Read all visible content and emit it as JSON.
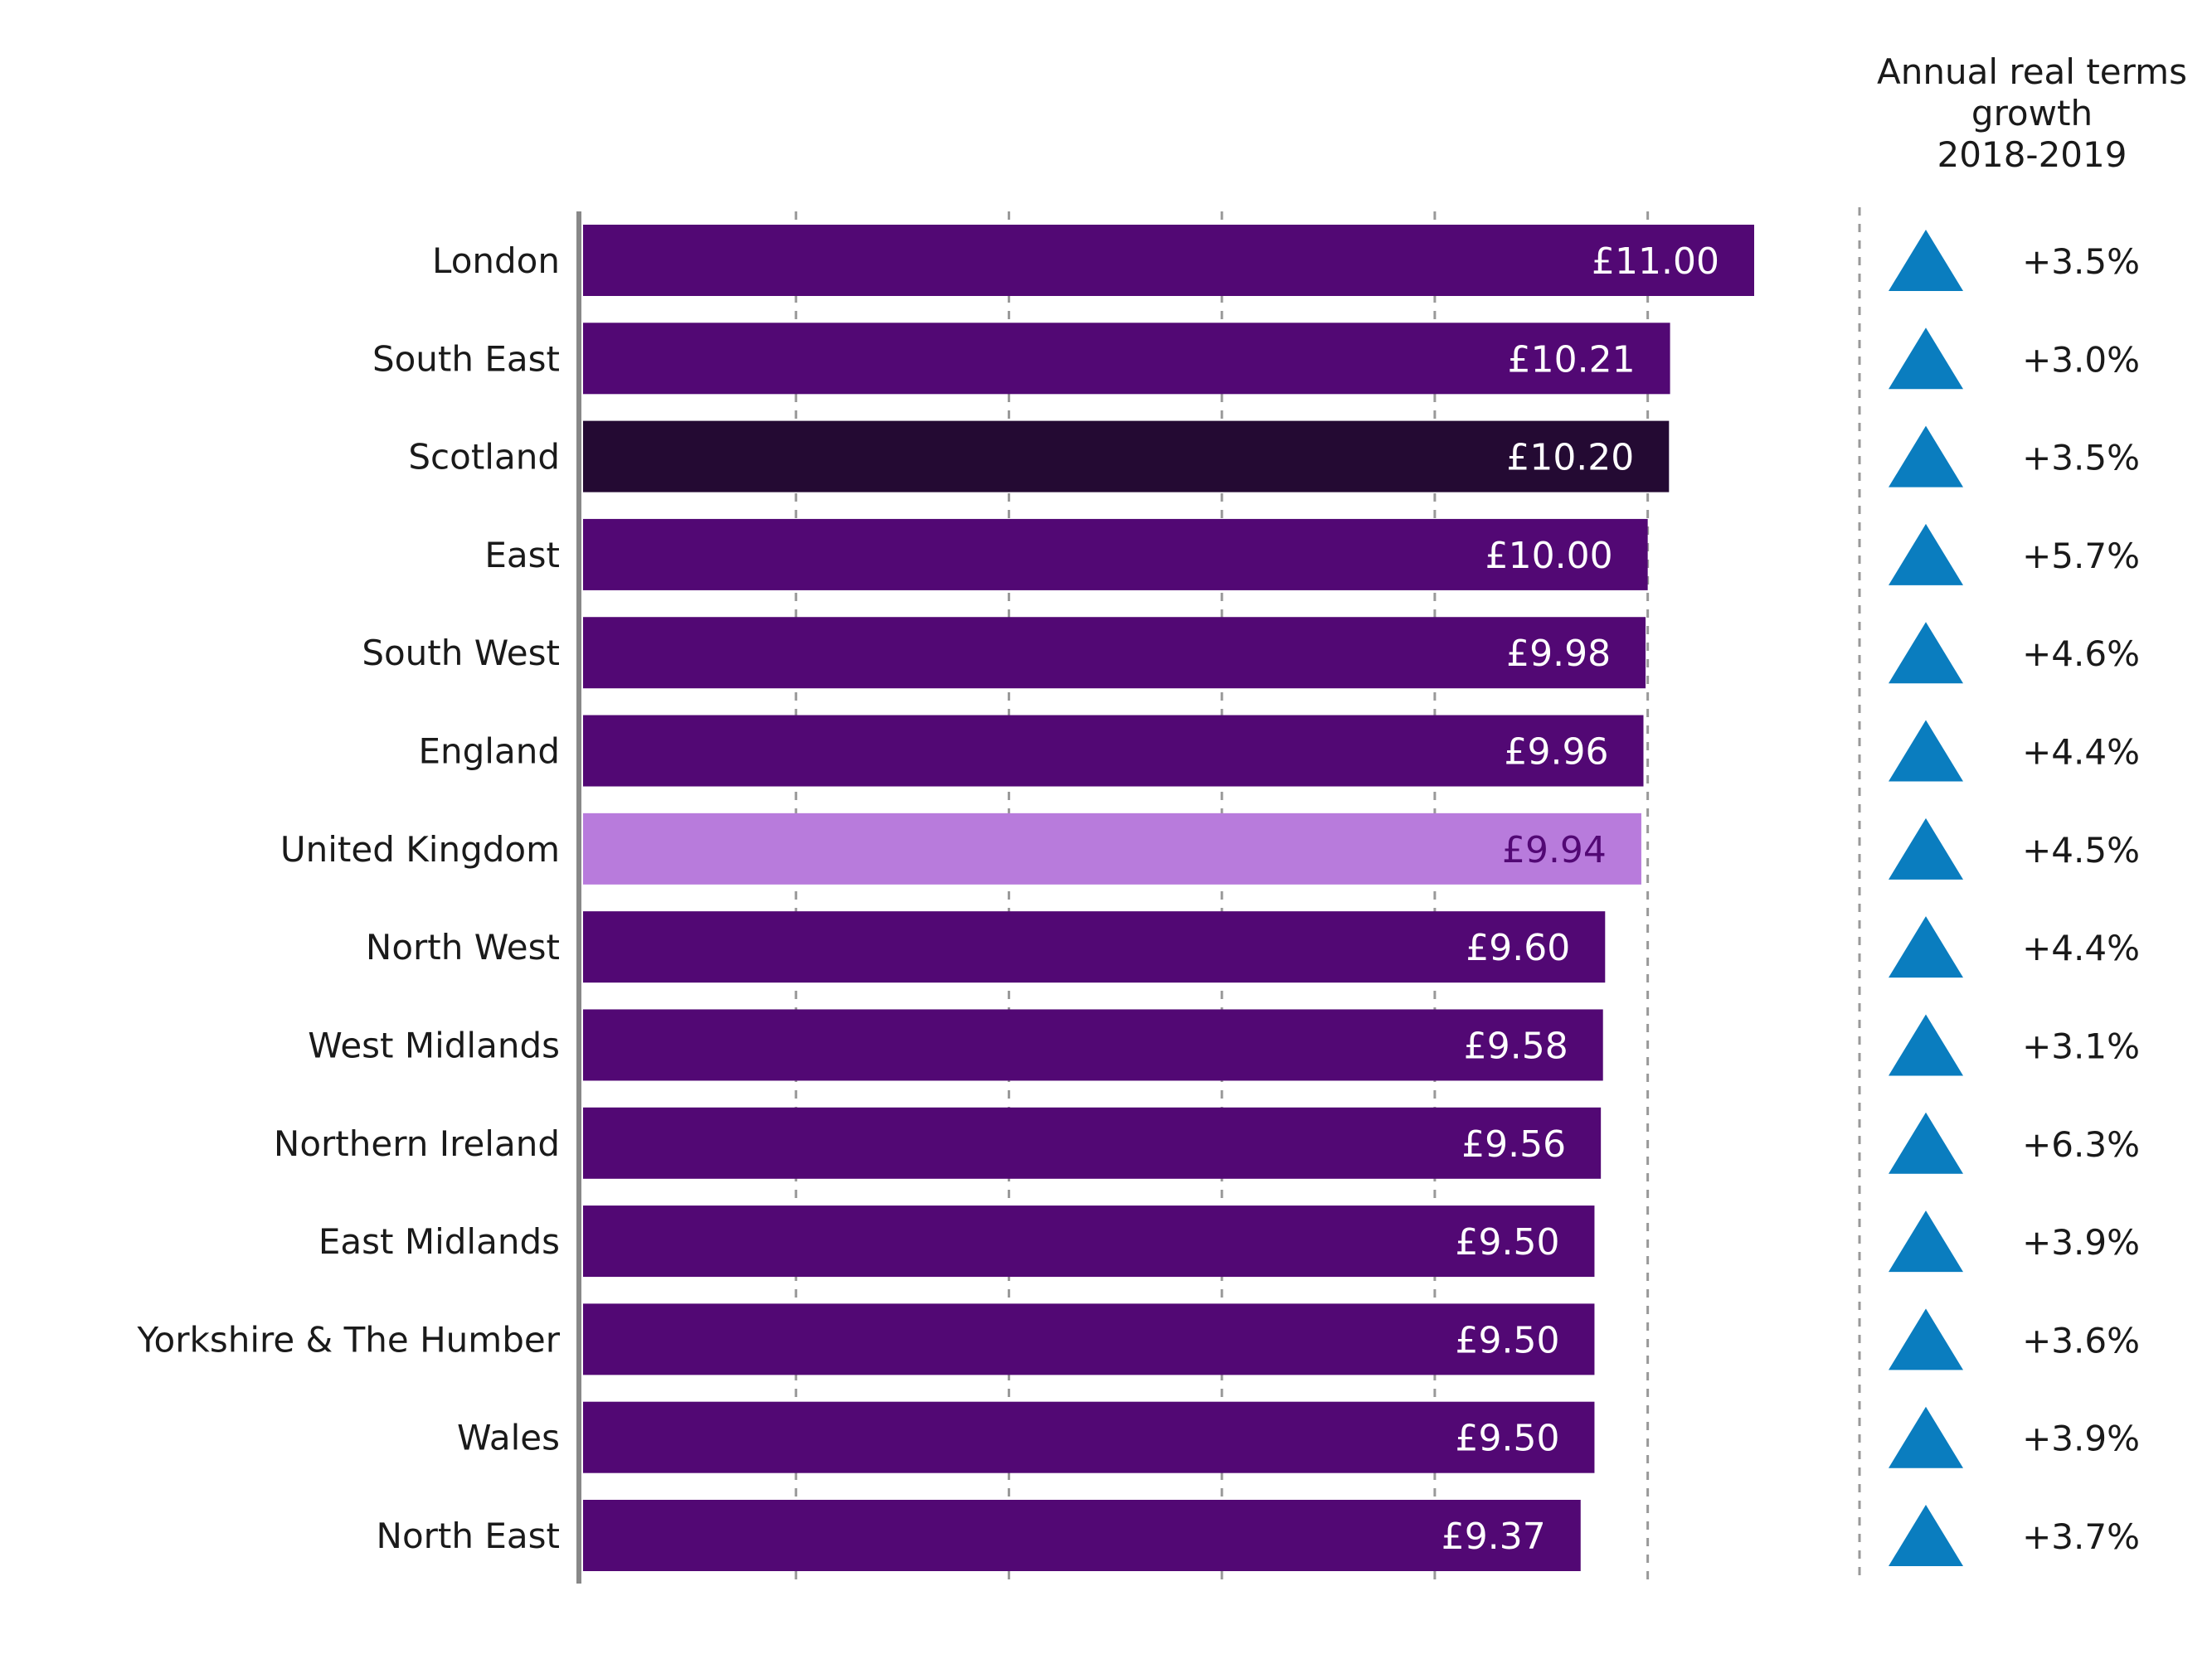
{
  "colors": {
    "default_bar": "#520874",
    "scotland_bar": "#240a33",
    "uk_bar": "#b87bdc",
    "uk_label": "#520874",
    "value_text": "#ffffff",
    "axis": "#888888",
    "gridline": "#999999",
    "triangle": "#0a7dbf"
  },
  "growth_header": {
    "line1": "Annual real terms",
    "line2": "growth",
    "line3": "2018-2019"
  },
  "chart_data": {
    "type": "bar",
    "orientation": "horizontal",
    "categories": [
      "London",
      "South East",
      "Scotland",
      "East",
      "South West",
      "England",
      "United Kingdom",
      "North West",
      "West Midlands",
      "Northern Ireland",
      "East Midlands",
      "Yorkshire & The Humber",
      "Wales",
      "North East"
    ],
    "values": [
      11.0,
      10.21,
      10.2,
      10.0,
      9.98,
      9.96,
      9.94,
      9.6,
      9.58,
      9.56,
      9.5,
      9.5,
      9.5,
      9.37
    ],
    "value_labels": [
      "£11.00",
      "£10.21",
      "£10.20",
      "£10.00",
      "£9.98",
      "£9.96",
      "£9.94",
      "£9.60",
      "£9.58",
      "£9.56",
      "£9.50",
      "£9.50",
      "£9.50",
      "£9.37"
    ],
    "highlight": {
      "Scotland": "scotland_bar",
      "United Kingdom": "uk_bar"
    },
    "xlim": [
      0,
      11
    ],
    "grid": true,
    "gridline_values": [
      2,
      4,
      6,
      8,
      10
    ],
    "growth": {
      "direction": [
        "up",
        "up",
        "up",
        "up",
        "up",
        "up",
        "up",
        "up",
        "up",
        "up",
        "up",
        "up",
        "up",
        "up"
      ],
      "labels": [
        "+3.5%",
        "+3.0%",
        "+3.5%",
        "+5.7%",
        "+4.6%",
        "+4.4%",
        "+4.5%",
        "+4.4%",
        "+3.1%",
        "+6.3%",
        "+3.9%",
        "+3.6%",
        "+3.9%",
        "+3.7%"
      ]
    }
  }
}
